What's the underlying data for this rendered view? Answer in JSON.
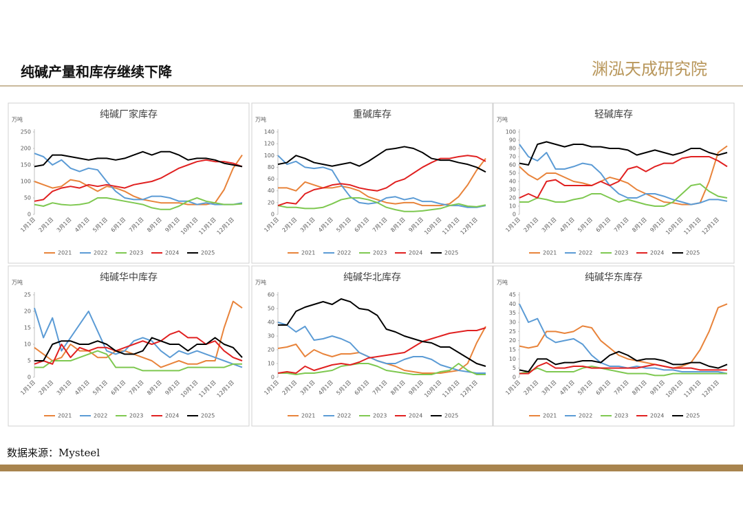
{
  "header": {
    "title": "纯碱产量和库存继续下降",
    "logo": "渊泓天成研究院"
  },
  "footer": {
    "source": "数据来源：Mysteel"
  },
  "chart_data": [
    {
      "type": "line",
      "title": "纯碱厂家库存",
      "y_label": "万吨",
      "categories": [
        "1月1日",
        null,
        "2月1日",
        null,
        "3月1日",
        null,
        "4月1日",
        null,
        "5月1日",
        null,
        "6月1日",
        null,
        "7月1日",
        null,
        "8月1日",
        null,
        "9月1日",
        null,
        "10月1日",
        null,
        "11月1日",
        null,
        "12月1日",
        null
      ],
      "ylim": [
        0,
        250
      ],
      "yticks": [
        0,
        50,
        100,
        150,
        200,
        250
      ],
      "series": [
        {
          "name": "2021",
          "color": "#e8833a",
          "values": [
            100,
            90,
            80,
            85,
            105,
            100,
            85,
            70,
            85,
            80,
            70,
            55,
            45,
            40,
            35,
            35,
            35,
            30,
            30,
            30,
            35,
            75,
            140,
            180
          ]
        },
        {
          "name": "2022",
          "color": "#5b9bd5",
          "values": [
            185,
            175,
            150,
            165,
            140,
            130,
            140,
            135,
            100,
            70,
            50,
            45,
            45,
            55,
            55,
            50,
            40,
            40,
            30,
            35,
            30,
            30,
            30,
            35
          ]
        },
        {
          "name": "2023",
          "color": "#7ec850",
          "values": [
            30,
            25,
            35,
            30,
            28,
            30,
            35,
            50,
            50,
            45,
            40,
            35,
            30,
            20,
            15,
            15,
            25,
            40,
            50,
            40,
            35,
            30,
            30,
            32
          ]
        },
        {
          "name": "2024",
          "color": "#e02020",
          "values": [
            40,
            45,
            70,
            80,
            85,
            80,
            90,
            85,
            90,
            85,
            80,
            90,
            95,
            100,
            110,
            125,
            140,
            150,
            160,
            165,
            160,
            160,
            155,
            145
          ]
        },
        {
          "name": "2025",
          "color": "#000000",
          "values": [
            145,
            150,
            180,
            180,
            175,
            170,
            165,
            170,
            170,
            165,
            170,
            180,
            190,
            180,
            190,
            190,
            180,
            165,
            170,
            170,
            165,
            155,
            150,
            145
          ]
        }
      ]
    },
    {
      "type": "line",
      "title": "重碱库存",
      "y_label": "万吨",
      "categories": [
        "1月1日",
        null,
        "2月1日",
        null,
        "3月1日",
        null,
        "4月1日",
        null,
        "5月1日",
        null,
        "6月1日",
        null,
        "7月1日",
        null,
        "8月1日",
        null,
        "9月1日",
        null,
        "10月1日",
        null,
        "11月1日",
        null,
        "12月1日",
        null
      ],
      "ylim": [
        0,
        140
      ],
      "yticks": [
        0,
        20,
        40,
        60,
        80,
        100,
        120,
        140
      ],
      "series": [
        {
          "name": "2021",
          "color": "#e8833a",
          "values": [
            45,
            45,
            40,
            55,
            50,
            45,
            45,
            48,
            45,
            40,
            30,
            25,
            20,
            18,
            20,
            20,
            15,
            15,
            15,
            18,
            30,
            50,
            75,
            95
          ]
        },
        {
          "name": "2022",
          "color": "#5b9bd5",
          "values": [
            100,
            85,
            90,
            80,
            78,
            80,
            75,
            50,
            30,
            20,
            18,
            20,
            28,
            30,
            25,
            28,
            22,
            22,
            18,
            15,
            15,
            12,
            12,
            15
          ]
        },
        {
          "name": "2023",
          "color": "#7ec850",
          "values": [
            15,
            12,
            12,
            10,
            10,
            12,
            18,
            25,
            28,
            28,
            25,
            20,
            12,
            8,
            5,
            5,
            6,
            8,
            10,
            15,
            18,
            14,
            13,
            16
          ]
        },
        {
          "name": "2024",
          "color": "#e02020",
          "values": [
            15,
            20,
            18,
            35,
            42,
            45,
            50,
            52,
            50,
            45,
            42,
            40,
            45,
            55,
            60,
            70,
            80,
            88,
            95,
            95,
            98,
            100,
            98,
            90
          ]
        },
        {
          "name": "2025",
          "color": "#000000",
          "values": [
            85,
            88,
            100,
            95,
            88,
            85,
            82,
            85,
            88,
            82,
            90,
            100,
            110,
            112,
            115,
            112,
            105,
            95,
            92,
            92,
            88,
            85,
            80,
            72
          ]
        }
      ]
    },
    {
      "type": "line",
      "title": "轻碱库存",
      "y_label": "万吨",
      "categories": [
        "1月1日",
        null,
        "2月1日",
        null,
        "3月1日",
        null,
        "4月1日",
        null,
        "5月1日",
        null,
        "6月1日",
        null,
        "7月1日",
        null,
        "8月1日",
        null,
        "9月1日",
        null,
        "10月1日",
        null,
        "11月1日",
        null,
        "12月1日",
        null
      ],
      "ylim": [
        0,
        100
      ],
      "yticks": [
        0,
        10,
        20,
        30,
        40,
        50,
        60,
        70,
        80,
        90,
        100
      ],
      "series": [
        {
          "name": "2021",
          "color": "#e8833a",
          "values": [
            58,
            48,
            42,
            50,
            50,
            45,
            40,
            38,
            35,
            40,
            45,
            42,
            38,
            30,
            25,
            20,
            15,
            14,
            12,
            12,
            14,
            40,
            75,
            83
          ]
        },
        {
          "name": "2022",
          "color": "#5b9bd5",
          "values": [
            85,
            70,
            65,
            75,
            55,
            55,
            58,
            62,
            60,
            50,
            35,
            25,
            20,
            20,
            25,
            25,
            22,
            18,
            15,
            12,
            14,
            18,
            18,
            16
          ]
        },
        {
          "name": "2023",
          "color": "#7ec850",
          "values": [
            15,
            15,
            20,
            18,
            15,
            15,
            18,
            20,
            25,
            25,
            20,
            15,
            18,
            15,
            12,
            10,
            10,
            15,
            25,
            35,
            37,
            28,
            22,
            20
          ]
        },
        {
          "name": "2024",
          "color": "#e02020",
          "values": [
            20,
            25,
            20,
            40,
            42,
            35,
            35,
            35,
            35,
            40,
            35,
            40,
            55,
            58,
            52,
            58,
            62,
            62,
            68,
            70,
            70,
            70,
            65,
            58
          ]
        },
        {
          "name": "2025",
          "color": "#000000",
          "values": [
            62,
            60,
            85,
            88,
            85,
            82,
            85,
            85,
            82,
            82,
            80,
            80,
            78,
            72,
            75,
            78,
            75,
            72,
            75,
            80,
            80,
            75,
            72,
            75
          ]
        }
      ]
    },
    {
      "type": "line",
      "title": "纯碱华中库存",
      "y_label": "万吨",
      "categories": [
        "1月1日",
        null,
        "2月1日",
        null,
        "3月1日",
        null,
        "4月1日",
        null,
        "5月1日",
        null,
        "6月1日",
        null,
        "7月1日",
        null,
        "8月1日",
        null,
        "9月1日",
        null,
        "10月1日",
        null,
        "11月1日",
        null,
        "12月1日",
        null
      ],
      "ylim": [
        0,
        25
      ],
      "yticks": [
        0,
        5,
        10,
        15,
        20,
        25
      ],
      "series": [
        {
          "name": "2021",
          "color": "#e8833a",
          "values": [
            9,
            7,
            5,
            6,
            10,
            8,
            8,
            6,
            6,
            8,
            8,
            7,
            6,
            5,
            3,
            4,
            5,
            4,
            4,
            5,
            5,
            15,
            23,
            21
          ]
        },
        {
          "name": "2022",
          "color": "#5b9bd5",
          "values": [
            21,
            12,
            18,
            8,
            12,
            16,
            20,
            14,
            8,
            7,
            8,
            11,
            12,
            11,
            8,
            6,
            8,
            7,
            8,
            7,
            6,
            5,
            4,
            3
          ]
        },
        {
          "name": "2023",
          "color": "#7ec850",
          "values": [
            3,
            3,
            5,
            5,
            5,
            6,
            7,
            8,
            7,
            3,
            3,
            3,
            2,
            2,
            2,
            2,
            2,
            3,
            3,
            3,
            3,
            3,
            4,
            4
          ]
        },
        {
          "name": "2024",
          "color": "#e02020",
          "values": [
            4,
            5,
            4,
            10,
            6,
            9,
            8,
            9,
            9,
            8,
            9,
            10,
            11,
            10,
            11,
            13,
            14,
            12,
            12,
            10,
            11,
            8,
            6,
            5
          ]
        },
        {
          "name": "2025",
          "color": "#000000",
          "values": [
            5,
            5,
            10,
            11,
            11,
            10,
            10,
            11,
            10,
            8,
            7,
            7,
            8,
            12,
            11,
            10,
            10,
            8,
            10,
            10,
            12,
            10,
            9,
            6
          ]
        }
      ]
    },
    {
      "type": "line",
      "title": "纯碱华北库存",
      "y_label": "万吨",
      "categories": [
        "1月1日",
        null,
        "2月1日",
        null,
        "3月1日",
        null,
        "4月1日",
        null,
        "5月1日",
        null,
        "6月1日",
        null,
        "7月1日",
        null,
        "8月1日",
        null,
        "9月1日",
        null,
        "10月1日",
        null,
        "11月1日",
        null,
        "12月1日",
        null
      ],
      "ylim": [
        0,
        60
      ],
      "yticks": [
        0,
        10,
        20,
        30,
        40,
        50,
        60
      ],
      "series": [
        {
          "name": "2021",
          "color": "#e8833a",
          "values": [
            21,
            22,
            24,
            15,
            20,
            17,
            15,
            17,
            17,
            18,
            15,
            12,
            10,
            8,
            5,
            4,
            3,
            3,
            3,
            4,
            5,
            10,
            25,
            37
          ]
        },
        {
          "name": "2022",
          "color": "#5b9bd5",
          "values": [
            40,
            38,
            33,
            37,
            27,
            28,
            30,
            28,
            25,
            18,
            15,
            12,
            10,
            10,
            13,
            15,
            15,
            13,
            9,
            7,
            5,
            4,
            3,
            3
          ]
        },
        {
          "name": "2023",
          "color": "#7ec850",
          "values": [
            3,
            3,
            2,
            3,
            3,
            4,
            5,
            8,
            9,
            10,
            10,
            8,
            5,
            4,
            3,
            2,
            2,
            2,
            4,
            5,
            10,
            5,
            2,
            2
          ]
        },
        {
          "name": "2024",
          "color": "#e02020",
          "values": [
            3,
            4,
            3,
            8,
            5,
            7,
            9,
            10,
            9,
            11,
            14,
            15,
            16,
            17,
            18,
            22,
            26,
            28,
            30,
            32,
            33,
            34,
            34,
            36
          ]
        },
        {
          "name": "2025",
          "color": "#000000",
          "values": [
            38,
            38,
            48,
            51,
            53,
            55,
            53,
            57,
            55,
            50,
            49,
            45,
            35,
            33,
            30,
            28,
            26,
            25,
            22,
            22,
            18,
            14,
            10,
            8
          ]
        }
      ]
    },
    {
      "type": "line",
      "title": "纯碱华东库存",
      "y_label": "万吨",
      "categories": [
        "1月1日",
        null,
        "2月1日",
        null,
        "3月1日",
        null,
        "4月1日",
        null,
        "5月1日",
        null,
        "6月1日",
        null,
        "7月1日",
        null,
        "8月1日",
        null,
        "9月1日",
        null,
        "10月1日",
        null,
        "11月1日",
        null,
        "12月1日",
        null
      ],
      "ylim": [
        0,
        45
      ],
      "yticks": [
        0,
        5,
        10,
        15,
        20,
        25,
        30,
        35,
        40,
        45
      ],
      "series": [
        {
          "name": "2021",
          "color": "#e8833a",
          "values": [
            17,
            16,
            17,
            25,
            25,
            24,
            25,
            28,
            27,
            20,
            16,
            12,
            10,
            9,
            8,
            7,
            6,
            5,
            6,
            8,
            15,
            25,
            38,
            40
          ]
        },
        {
          "name": "2022",
          "color": "#5b9bd5",
          "values": [
            40,
            30,
            32,
            22,
            19,
            20,
            21,
            18,
            12,
            8,
            6,
            6,
            5,
            6,
            5,
            5,
            4,
            4,
            3,
            3,
            3,
            3,
            3,
            2
          ]
        },
        {
          "name": "2023",
          "color": "#7ec850",
          "values": [
            2,
            3,
            5,
            3,
            3,
            3,
            3,
            5,
            6,
            5,
            4,
            3,
            2,
            2,
            2,
            1,
            1,
            2,
            2,
            2,
            2,
            2,
            2,
            2
          ]
        },
        {
          "name": "2024",
          "color": "#e02020",
          "values": [
            2,
            2,
            6,
            8,
            5,
            5,
            6,
            6,
            5,
            5,
            5,
            5,
            5,
            5,
            6,
            7,
            6,
            5,
            5,
            5,
            4,
            4,
            4,
            4
          ]
        },
        {
          "name": "2025",
          "color": "#000000",
          "values": [
            4,
            3,
            10,
            10,
            7,
            8,
            8,
            9,
            9,
            8,
            12,
            14,
            12,
            9,
            10,
            10,
            9,
            7,
            7,
            8,
            8,
            6,
            5,
            7
          ]
        }
      ]
    }
  ]
}
